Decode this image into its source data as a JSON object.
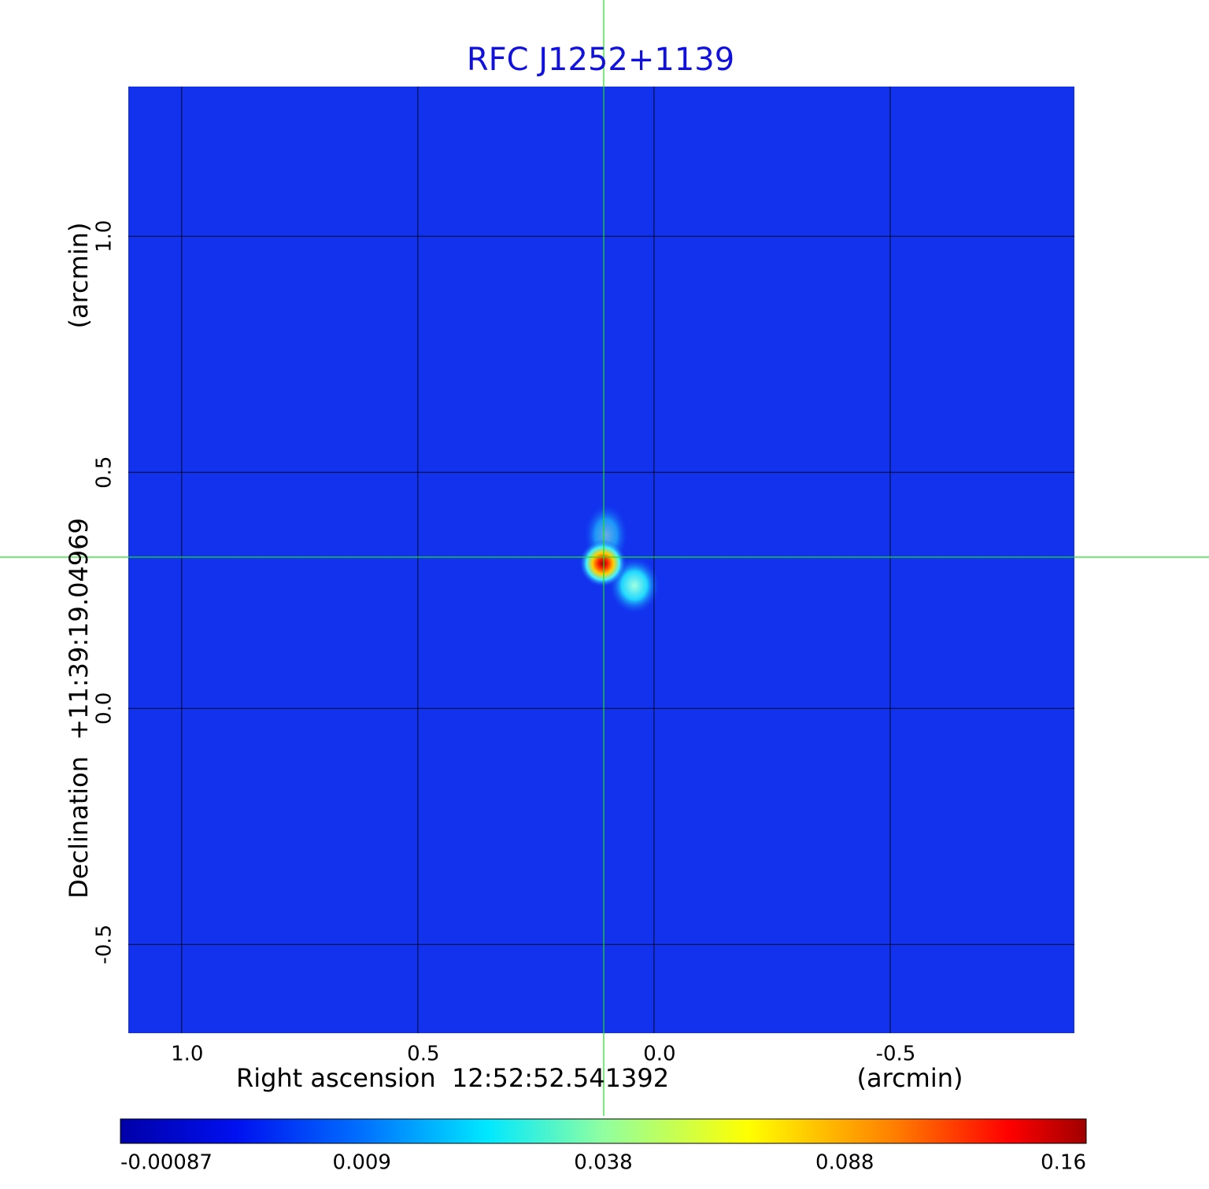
{
  "chart_data": {
    "type": "image",
    "title": "RFC J1252+1139",
    "x_label": "Right ascension  12:52:52.541392",
    "x_unit": "(arcmin)",
    "y_label": "Declination  +11:39:19.04969",
    "y_unit": "(arcmin)",
    "xlim": [
      1.113,
      -0.89
    ],
    "ylim": [
      -0.688,
      1.317
    ],
    "xticks": [
      {
        "value": 1,
        "label": "1.0"
      },
      0.5,
      {
        "value": 0,
        "label": "0.0"
      },
      -0.5
    ],
    "yticks": [
      {
        "value": 1,
        "label": "1.0"
      },
      0.5,
      {
        "value": 0,
        "label": "0.0"
      },
      -0.5
    ],
    "grid": true,
    "colorbar_ticks": [
      -0.00087,
      0.009,
      0.038,
      0.088,
      0.16
    ]
  }
}
